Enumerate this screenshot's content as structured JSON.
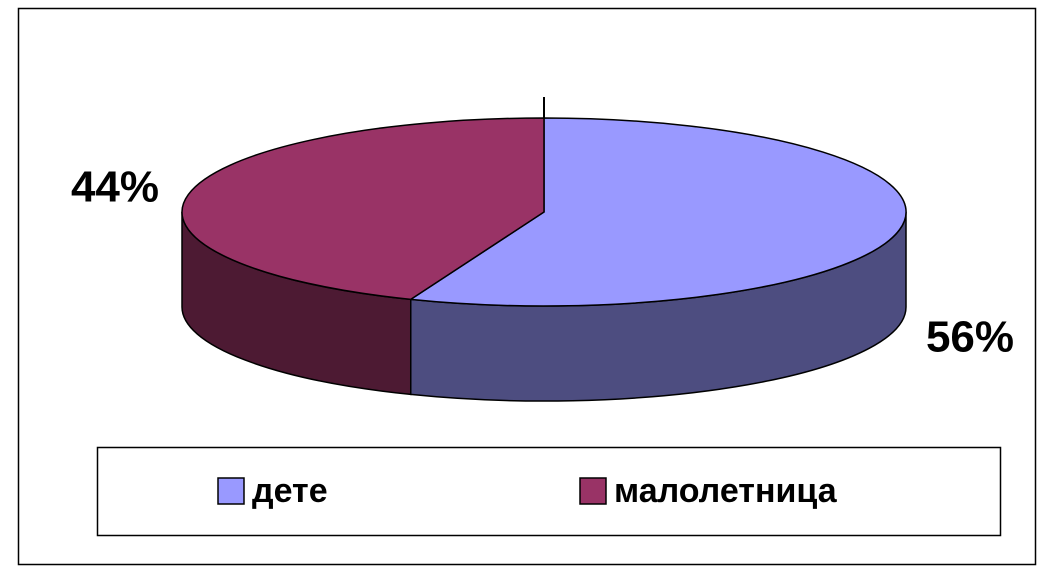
{
  "chart_data": {
    "type": "pie",
    "categories": [
      "дете",
      "малолетница"
    ],
    "values": [
      56,
      44
    ],
    "value_labels": [
      "56%",
      "44%"
    ],
    "colors": [
      "#9999FF",
      "#993366"
    ],
    "legend": "bottom"
  }
}
